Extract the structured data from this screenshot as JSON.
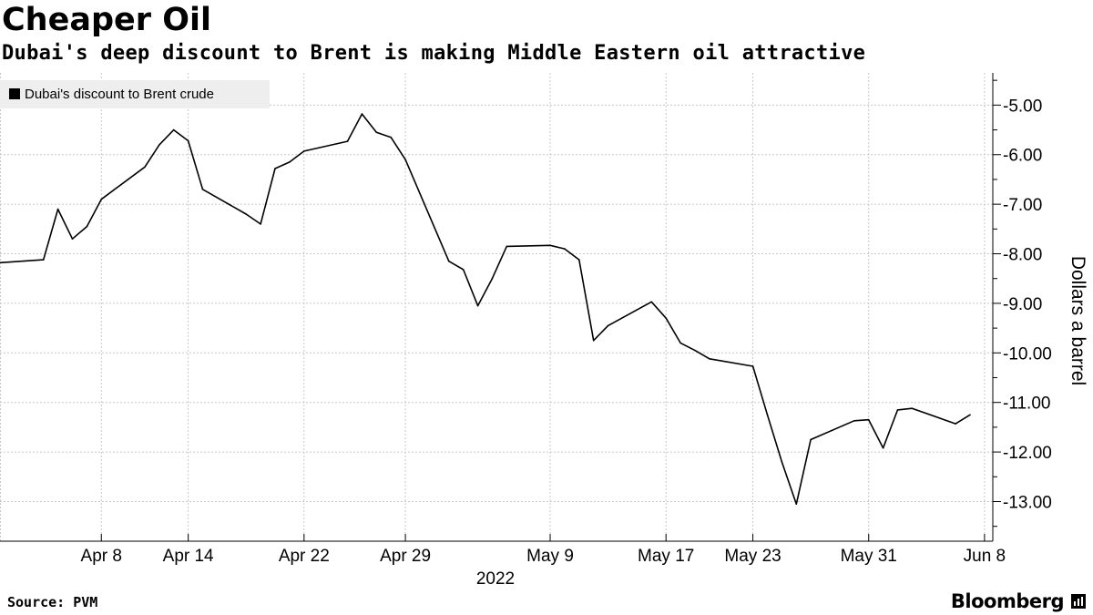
{
  "header": {
    "title": "Cheaper Oil",
    "subtitle": "Dubai's deep discount to Brent is making Middle Eastern oil attractive"
  },
  "footer": {
    "source": "Source: PVM",
    "brand": "Bloomberg"
  },
  "icons": {
    "brand_mark": "bloomberg-terminal-icon"
  },
  "colors": {
    "line": "#000000",
    "grid": "#c8c8c8",
    "legend_bg": "#eeeeee"
  },
  "chart_data": {
    "type": "line",
    "title": "Cheaper Oil",
    "subtitle": "Dubai's deep discount to Brent is making Middle Eastern oil attractive",
    "ylabel": "Dollars a barrel",
    "y_axis_position": "right",
    "ylim": [
      -13.8,
      -4.35
    ],
    "yticks": [
      -5,
      -6,
      -7,
      -8,
      -9,
      -10,
      -11,
      -12,
      -13
    ],
    "ytick_labels": [
      "-5.00",
      "-6.00",
      "-7.00",
      "-8.00",
      "-9.00",
      "-10.00",
      "-11.00",
      "-12.00",
      "-13.00"
    ],
    "xlim": [
      "2022-04-01",
      "2022-06-10"
    ],
    "xtick_labels": [
      "Apr 8",
      "Apr 14",
      "Apr 22",
      "Apr 29",
      "May 9",
      "May 17",
      "May 23",
      "May 31",
      "Jun 8"
    ],
    "xtick_dates": [
      "2022-04-08",
      "2022-04-14",
      "2022-04-22",
      "2022-04-29",
      "2022-05-09",
      "2022-05-17",
      "2022-05-23",
      "2022-05-31",
      "2022-06-08"
    ],
    "year_label": "2022",
    "grid": true,
    "legend_position": "top-left",
    "series": [
      {
        "name": "Dubai's discount to Brent crude",
        "points": [
          [
            "2022-04-01",
            -8.18
          ],
          [
            "2022-04-04",
            -8.12
          ],
          [
            "2022-04-05",
            -7.1
          ],
          [
            "2022-04-06",
            -7.7
          ],
          [
            "2022-04-07",
            -7.45
          ],
          [
            "2022-04-08",
            -6.9
          ],
          [
            "2022-04-11",
            -6.25
          ],
          [
            "2022-04-12",
            -5.8
          ],
          [
            "2022-04-13",
            -5.5
          ],
          [
            "2022-04-14",
            -5.72
          ],
          [
            "2022-04-15",
            -6.7
          ],
          [
            "2022-04-18",
            -7.2
          ],
          [
            "2022-04-19",
            -7.4
          ],
          [
            "2022-04-20",
            -6.28
          ],
          [
            "2022-04-21",
            -6.15
          ],
          [
            "2022-04-22",
            -5.93
          ],
          [
            "2022-04-25",
            -5.73
          ],
          [
            "2022-04-26",
            -5.18
          ],
          [
            "2022-04-27",
            -5.55
          ],
          [
            "2022-04-28",
            -5.65
          ],
          [
            "2022-04-29",
            -6.1
          ],
          [
            "2022-05-02",
            -8.15
          ],
          [
            "2022-05-03",
            -8.32
          ],
          [
            "2022-05-04",
            -9.05
          ],
          [
            "2022-05-05",
            -8.5
          ],
          [
            "2022-05-06",
            -7.85
          ],
          [
            "2022-05-09",
            -7.83
          ],
          [
            "2022-05-10",
            -7.9
          ],
          [
            "2022-05-11",
            -8.12
          ],
          [
            "2022-05-12",
            -9.75
          ],
          [
            "2022-05-13",
            -9.45
          ],
          [
            "2022-05-16",
            -8.97
          ],
          [
            "2022-05-17",
            -9.3
          ],
          [
            "2022-05-18",
            -9.8
          ],
          [
            "2022-05-19",
            -9.95
          ],
          [
            "2022-05-20",
            -10.12
          ],
          [
            "2022-05-23",
            -10.27
          ],
          [
            "2022-05-24",
            -11.25
          ],
          [
            "2022-05-25",
            -12.2
          ],
          [
            "2022-05-26",
            -13.05
          ],
          [
            "2022-05-27",
            -11.75
          ],
          [
            "2022-05-30",
            -11.37
          ],
          [
            "2022-05-31",
            -11.35
          ],
          [
            "2022-06-01",
            -11.92
          ],
          [
            "2022-06-02",
            -11.15
          ],
          [
            "2022-06-03",
            -11.12
          ],
          [
            "2022-06-06",
            -11.43
          ],
          [
            "2022-06-07",
            -11.25
          ]
        ]
      }
    ]
  }
}
